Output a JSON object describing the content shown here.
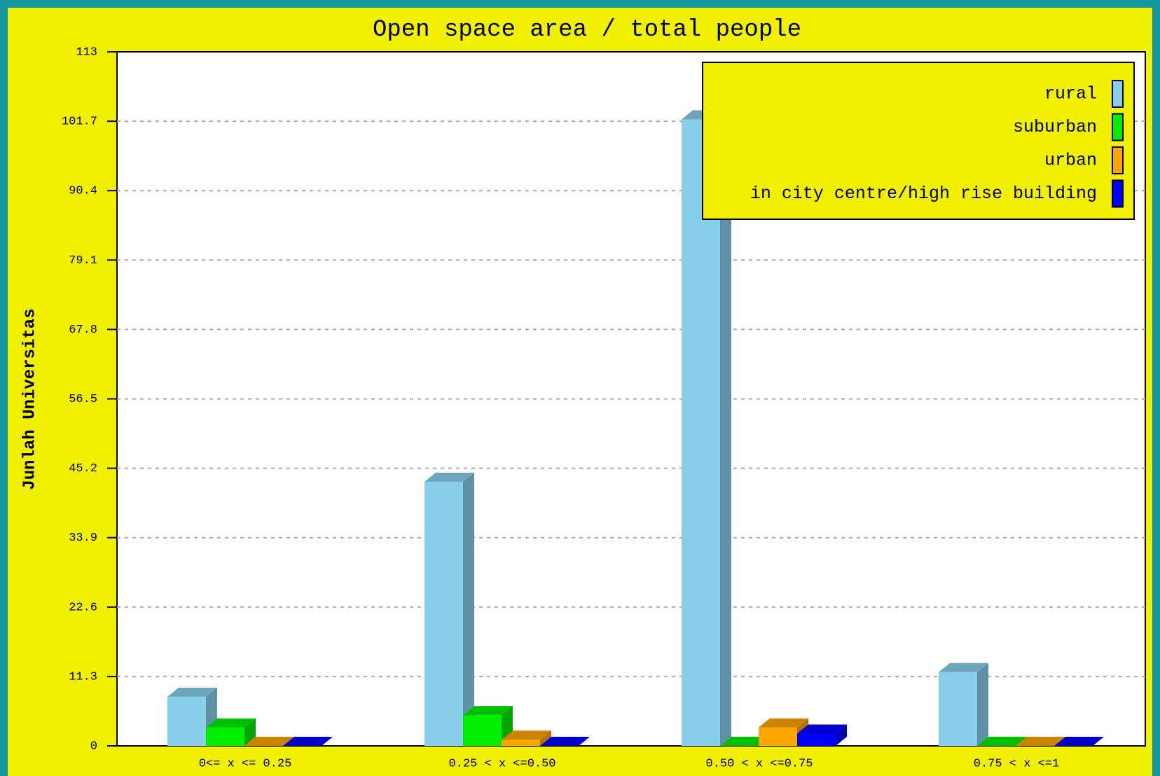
{
  "chart_data": {
    "type": "bar3d",
    "title": "Open space area / total people",
    "ylabel": "Junlah Universitas",
    "categories": [
      "0<= x <= 0.25",
      "0.25 < x <=0.50",
      "0.50 < x <=0.75",
      "0.75 < x <=1"
    ],
    "series": [
      {
        "name": "rural",
        "color": "#87ceeb",
        "values": [
          8,
          43,
          102,
          12
        ]
      },
      {
        "name": "suburban",
        "color": "#00ee00",
        "values": [
          3,
          5,
          0,
          0
        ]
      },
      {
        "name": "urban",
        "color": "#ffa500",
        "values": [
          0,
          1,
          3,
          0
        ]
      },
      {
        "name": "in city centre/high rise building",
        "color": "#0000ff",
        "values": [
          0,
          0,
          2,
          0
        ]
      }
    ],
    "ylim": [
      0,
      113
    ],
    "yticks": [
      0,
      11.3,
      22.6,
      33.9,
      45.2,
      56.5,
      67.8,
      79.1,
      90.4,
      101.7,
      113
    ],
    "grid": true,
    "legend": "upper right"
  }
}
